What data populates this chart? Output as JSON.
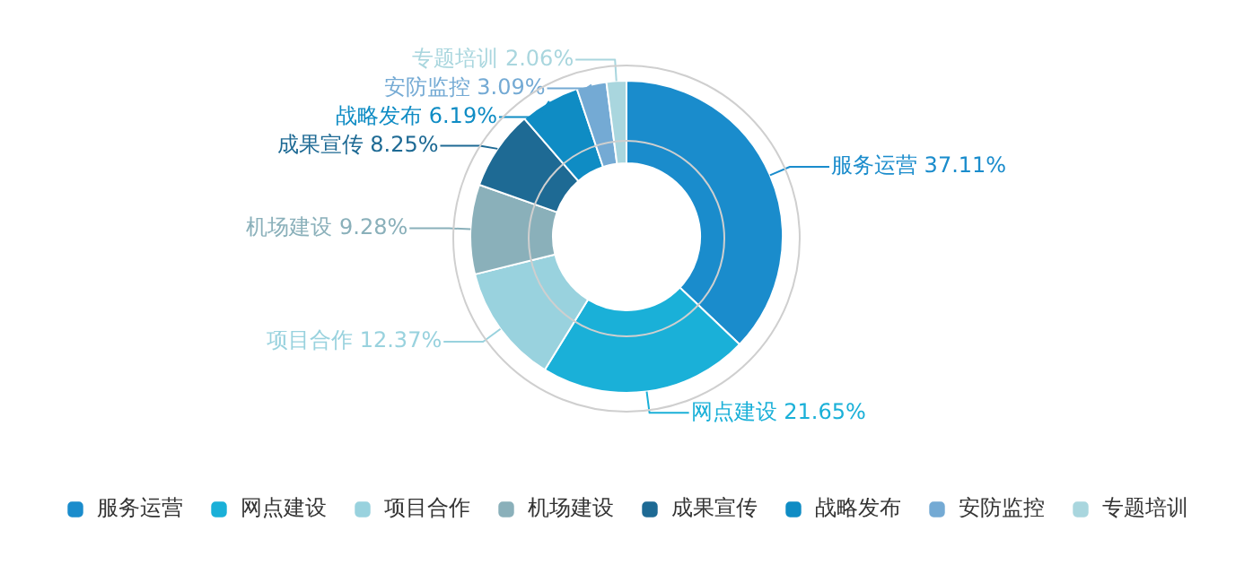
{
  "chart_data": {
    "type": "donut",
    "categories": [
      "服务运营",
      "网点建设",
      "项目合作",
      "机场建设",
      "成果宣传",
      "战略发布",
      "安防监控",
      "专题培训"
    ],
    "values": [
      37.11,
      21.65,
      12.37,
      9.28,
      8.25,
      6.19,
      3.09,
      2.06
    ],
    "value_labels": [
      "37.11%",
      "21.65%",
      "12.37%",
      "9.28%",
      "8.25%",
      "6.19%",
      "3.09%",
      "2.06%"
    ],
    "colors": [
      "#1a8ccc",
      "#1ab0d8",
      "#99d2de",
      "#8ab0ba",
      "#1e6a94",
      "#0f8cc4",
      "#74aad4",
      "#a9d6de"
    ],
    "legend": "bottom"
  }
}
